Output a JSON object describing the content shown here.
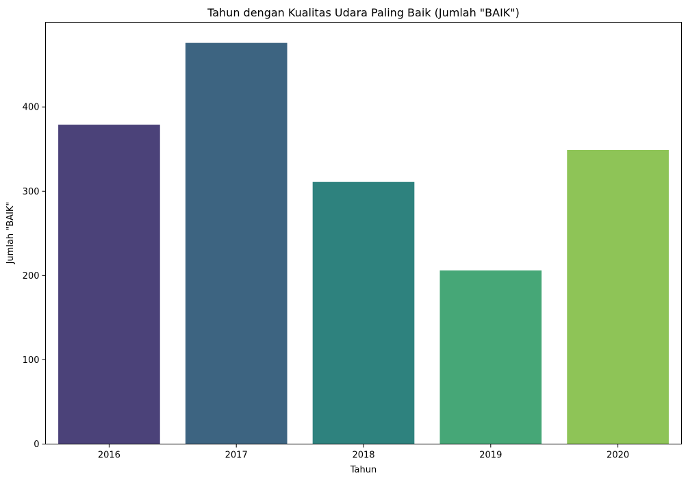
{
  "chart_data": {
    "type": "bar",
    "title": "Tahun dengan Kualitas Udara Paling Baik (Jumlah \"BAIK\")",
    "xlabel": "Tahun",
    "ylabel": "Jumlah \"BAIK\"",
    "categories": [
      "2016",
      "2017",
      "2018",
      "2019",
      "2020"
    ],
    "values": [
      379,
      476,
      311,
      206,
      349
    ],
    "colors": [
      "#4b4279",
      "#3d6481",
      "#2e827e",
      "#46a777",
      "#8ec457"
    ],
    "ylim": [
      0,
      500
    ],
    "yticks": [
      0,
      100,
      200,
      300,
      400
    ],
    "ytick_labels": [
      "0",
      "100",
      "200",
      "300",
      "400"
    ],
    "grid": false,
    "legend": "none"
  }
}
